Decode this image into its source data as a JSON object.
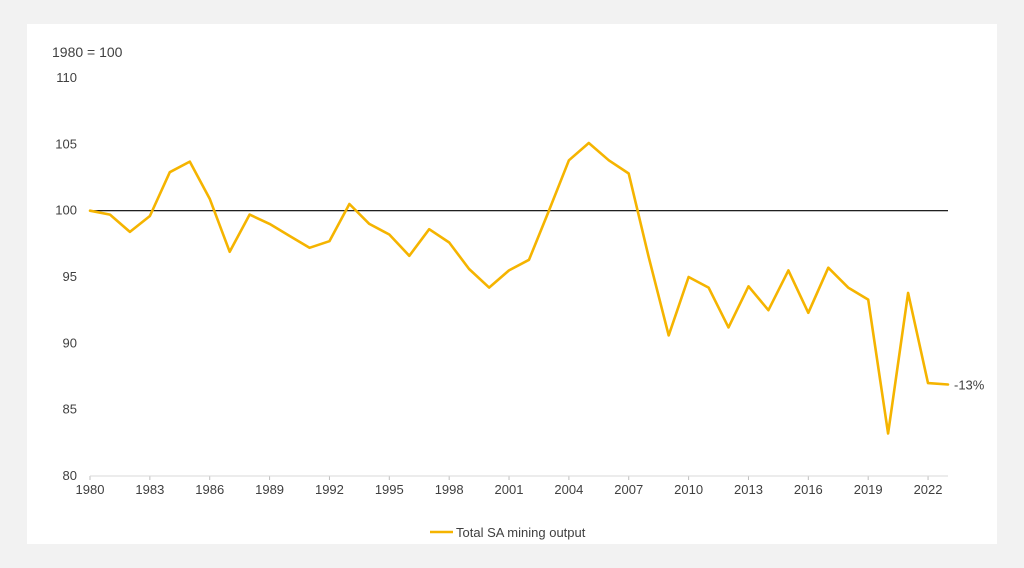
{
  "chart_data": {
    "type": "line",
    "unit_label": "1980 = 100",
    "x": [
      1980,
      1981,
      1982,
      1983,
      1984,
      1985,
      1986,
      1987,
      1988,
      1989,
      1990,
      1991,
      1992,
      1993,
      1994,
      1995,
      1996,
      1997,
      1998,
      1999,
      2000,
      2001,
      2002,
      2003,
      2004,
      2005,
      2006,
      2007,
      2008,
      2009,
      2010,
      2011,
      2012,
      2013,
      2014,
      2015,
      2016,
      2017,
      2018,
      2019,
      2020,
      2021,
      2022,
      2023
    ],
    "x_ticks": [
      "1980",
      "1983",
      "1986",
      "1989",
      "1992",
      "1995",
      "1998",
      "2001",
      "2004",
      "2007",
      "2010",
      "2013",
      "2016",
      "2019",
      "2022"
    ],
    "y_ticks": [
      "110",
      "105",
      "100",
      "95",
      "90",
      "85",
      "80"
    ],
    "ylim": [
      80,
      110
    ],
    "xlim": [
      1980,
      2023
    ],
    "reference_line": 100,
    "series": [
      {
        "name": "Total SA mining output",
        "color": "#f5b400",
        "values": [
          100.0,
          99.7,
          98.4,
          99.6,
          102.9,
          103.7,
          100.9,
          96.9,
          99.7,
          99.0,
          98.1,
          97.2,
          97.7,
          100.5,
          99.0,
          98.2,
          96.6,
          98.6,
          97.6,
          95.6,
          94.2,
          95.5,
          96.3,
          100.0,
          103.8,
          105.1,
          103.8,
          102.8,
          96.5,
          90.6,
          95.0,
          94.2,
          91.2,
          94.3,
          92.5,
          95.5,
          92.3,
          95.7,
          94.2,
          93.3,
          83.2,
          93.8,
          87.0,
          86.9
        ]
      }
    ],
    "end_annotation": "-13%",
    "grid": false,
    "legend_position": "bottom-center"
  }
}
